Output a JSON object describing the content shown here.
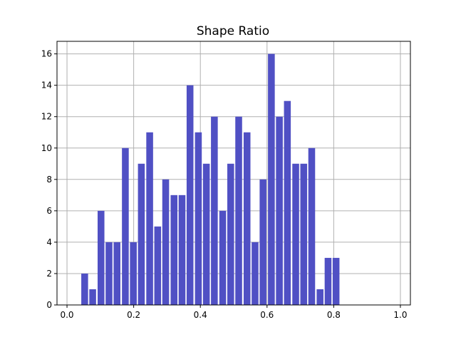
{
  "chart_data": {
    "type": "bar",
    "title": "Shape Ratio",
    "xlabel": "",
    "ylabel": "",
    "bin_width": 0.024,
    "bar_color": "#5050c4",
    "grid": true,
    "xlim": [
      -0.03,
      1.03
    ],
    "ylim": [
      0,
      16.8
    ],
    "x_ticks": [
      0.0,
      0.2,
      0.4,
      0.6,
      0.8,
      1.0
    ],
    "x_tick_labels": [
      "0.0",
      "0.2",
      "0.4",
      "0.6",
      "0.8",
      "1.0"
    ],
    "y_ticks": [
      0,
      2,
      4,
      6,
      8,
      10,
      12,
      14,
      16
    ],
    "y_tick_labels": [
      "0",
      "2",
      "4",
      "6",
      "8",
      "10",
      "12",
      "14",
      "16"
    ],
    "bins_x": [
      0.053,
      0.077,
      0.102,
      0.126,
      0.15,
      0.175,
      0.199,
      0.223,
      0.248,
      0.272,
      0.296,
      0.321,
      0.345,
      0.369,
      0.394,
      0.418,
      0.442,
      0.467,
      0.491,
      0.515,
      0.54,
      0.564,
      0.588,
      0.613,
      0.637,
      0.661,
      0.686,
      0.71,
      0.734,
      0.759,
      0.783,
      0.807,
      0.832
    ],
    "values": [
      2,
      1,
      6,
      4,
      4,
      10,
      4,
      9,
      11,
      5,
      8,
      7,
      7,
      14,
      11,
      9,
      12,
      6,
      9,
      12,
      11,
      4,
      8,
      16,
      12,
      13,
      9,
      9,
      10,
      1,
      3,
      3,
      0
    ]
  }
}
